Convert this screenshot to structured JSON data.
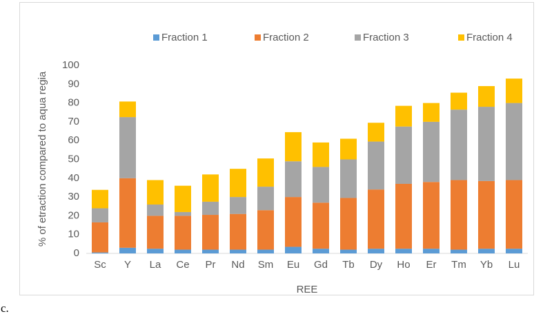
{
  "chart_data": {
    "type": "stacked_bar",
    "caption": "c.",
    "x_label": "REE",
    "y_label": "% of etraction compared to aqua regia",
    "categories": [
      "Sc",
      "Y",
      "La",
      "Ce",
      "Pr",
      "Nd",
      "Sm",
      "Eu",
      "Gd",
      "Tb",
      "Dy",
      "Ho",
      "Er",
      "Tm",
      "Yb",
      "Lu"
    ],
    "series": [
      {
        "name": "Fraction 1",
        "color": "#5b9bd5",
        "values": [
          0.5,
          3,
          2.5,
          2,
          2,
          2,
          2,
          3.5,
          2.5,
          2,
          2.5,
          2.5,
          2.5,
          2,
          2.5,
          2.5
        ]
      },
      {
        "name": "Fraction 2",
        "color": "#ed7d31",
        "values": [
          16,
          37,
          17.5,
          18,
          18.5,
          19,
          21,
          26.5,
          24.5,
          27.5,
          31.5,
          34.5,
          35.5,
          37,
          36,
          36.5
        ]
      },
      {
        "name": "Fraction 3",
        "color": "#a5a5a5",
        "values": [
          7.5,
          32.5,
          6,
          2,
          7,
          9,
          12.5,
          19,
          19,
          20.5,
          25.5,
          30.5,
          32,
          37.5,
          39.5,
          41
        ]
      },
      {
        "name": "Fraction 4",
        "color": "#ffc000",
        "values": [
          9.8,
          8.3,
          13,
          14,
          14.5,
          15,
          15,
          15.5,
          13,
          11,
          10,
          11,
          10,
          9,
          11,
          13
        ]
      }
    ],
    "ylim": [
      0,
      100
    ],
    "yticks": [
      0,
      10,
      20,
      30,
      40,
      50,
      60,
      70,
      80,
      90,
      100
    ],
    "legend": "top"
  }
}
